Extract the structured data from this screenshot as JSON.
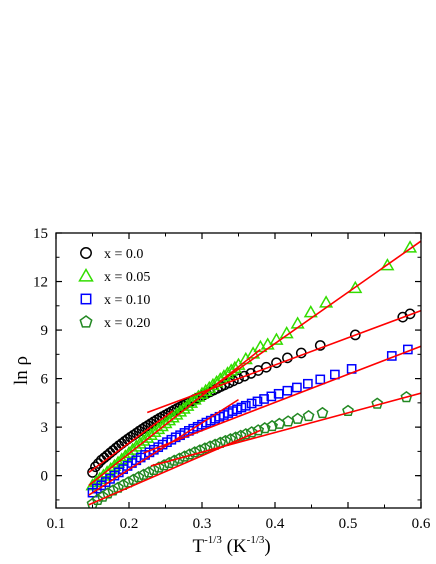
{
  "chart_data": {
    "type": "scatter",
    "xlabel": {
      "base": "T",
      "exp": "-1/3",
      "unit_pre": " (K",
      "unit_exp": "-1/3",
      "unit_post": ")"
    },
    "ylabel": "ln ρ",
    "xlim": [
      0.1,
      0.6
    ],
    "ylim": [
      -2,
      15
    ],
    "xticks": [
      0.1,
      0.2,
      0.3,
      0.4,
      0.5,
      0.6
    ],
    "xtick_labels": [
      "0.1",
      "0.2",
      "0.3",
      "0.4",
      "0.5",
      "0.6"
    ],
    "yticks": [
      0,
      3,
      6,
      9,
      12,
      15
    ],
    "ytick_labels": [
      "0",
      "3",
      "6",
      "9",
      "12",
      "15"
    ],
    "legend_position": "top-left",
    "fit_line_color": "#ff0000",
    "series": [
      {
        "name": "x = 0.0",
        "marker": "circle",
        "color": "#000000",
        "x": [
          0.15,
          0.154,
          0.158,
          0.162,
          0.166,
          0.17,
          0.174,
          0.178,
          0.182,
          0.186,
          0.19,
          0.194,
          0.198,
          0.202,
          0.206,
          0.21,
          0.214,
          0.218,
          0.222,
          0.226,
          0.23,
          0.234,
          0.238,
          0.242,
          0.246,
          0.25,
          0.254,
          0.258,
          0.262,
          0.266,
          0.27,
          0.274,
          0.278,
          0.282,
          0.286,
          0.29,
          0.294,
          0.298,
          0.302,
          0.306,
          0.311,
          0.316,
          0.321,
          0.326,
          0.331,
          0.337,
          0.343,
          0.35,
          0.358,
          0.367,
          0.377,
          0.388,
          0.402,
          0.417,
          0.436,
          0.462,
          0.51,
          0.575,
          0.585
        ],
        "y": [
          0.2,
          0.55,
          0.75,
          0.95,
          1.1,
          1.25,
          1.4,
          1.55,
          1.7,
          1.85,
          1.98,
          2.12,
          2.25,
          2.38,
          2.5,
          2.62,
          2.75,
          2.87,
          2.99,
          3.1,
          3.22,
          3.33,
          3.44,
          3.55,
          3.65,
          3.75,
          3.85,
          3.95,
          4.05,
          4.15,
          4.24,
          4.34,
          4.44,
          4.54,
          4.62,
          4.72,
          4.81,
          4.9,
          4.98,
          5.08,
          5.18,
          5.29,
          5.4,
          5.51,
          5.61,
          5.73,
          5.86,
          5.99,
          6.15,
          6.32,
          6.5,
          6.7,
          6.98,
          7.28,
          7.58,
          8.05,
          8.7,
          9.8,
          10.0
        ],
        "fits": [
          [
            0.145,
            0.2,
            0.26,
            4.0
          ],
          [
            0.225,
            3.9,
            0.6,
            10.2
          ]
        ]
      },
      {
        "name": "x = 0.05",
        "marker": "triangle",
        "color": "#33dd00",
        "x": [
          0.15,
          0.155,
          0.16,
          0.165,
          0.17,
          0.175,
          0.18,
          0.185,
          0.19,
          0.195,
          0.2,
          0.205,
          0.21,
          0.215,
          0.22,
          0.225,
          0.23,
          0.235,
          0.24,
          0.245,
          0.25,
          0.255,
          0.26,
          0.265,
          0.27,
          0.275,
          0.28,
          0.285,
          0.29,
          0.295,
          0.3,
          0.305,
          0.31,
          0.315,
          0.32,
          0.325,
          0.33,
          0.335,
          0.34,
          0.345,
          0.35,
          0.36,
          0.37,
          0.38,
          0.39,
          0.402,
          0.416,
          0.431,
          0.449,
          0.47,
          0.51,
          0.554,
          0.585
        ],
        "y": [
          -0.6,
          -0.4,
          -0.2,
          0.0,
          0.2,
          0.4,
          0.6,
          0.8,
          1.0,
          1.2,
          1.4,
          1.6,
          1.8,
          1.98,
          2.16,
          2.34,
          2.52,
          2.7,
          2.88,
          3.06,
          3.24,
          3.42,
          3.6,
          3.78,
          3.96,
          4.14,
          4.32,
          4.5,
          4.7,
          4.88,
          5.06,
          5.24,
          5.42,
          5.6,
          5.78,
          5.96,
          6.14,
          6.32,
          6.5,
          6.66,
          6.85,
          7.2,
          7.55,
          7.95,
          8.1,
          8.4,
          8.8,
          9.4,
          10.1,
          10.7,
          11.6,
          13.0,
          14.1
        ],
        "fits": [
          [
            0.145,
            -0.6,
            0.38,
            7.8
          ],
          [
            0.3,
            5.0,
            0.6,
            14.5
          ]
        ]
      },
      {
        "name": "x = 0.10",
        "marker": "square",
        "color": "#0000ff",
        "x": [
          0.15,
          0.156,
          0.162,
          0.168,
          0.174,
          0.18,
          0.186,
          0.192,
          0.198,
          0.204,
          0.21,
          0.216,
          0.222,
          0.228,
          0.234,
          0.24,
          0.246,
          0.252,
          0.258,
          0.264,
          0.27,
          0.276,
          0.282,
          0.288,
          0.294,
          0.3,
          0.306,
          0.312,
          0.318,
          0.324,
          0.33,
          0.336,
          0.342,
          0.348,
          0.354,
          0.36,
          0.368,
          0.376,
          0.385,
          0.395,
          0.405,
          0.417,
          0.43,
          0.445,
          0.462,
          0.482,
          0.505,
          0.56,
          0.582
        ],
        "y": [
          -1.05,
          -0.8,
          -0.6,
          -0.4,
          -0.2,
          0.0,
          0.2,
          0.4,
          0.6,
          0.78,
          0.95,
          1.12,
          1.28,
          1.44,
          1.6,
          1.76,
          1.92,
          2.07,
          2.22,
          2.37,
          2.5,
          2.64,
          2.77,
          2.9,
          3.02,
          3.15,
          3.28,
          3.4,
          3.52,
          3.64,
          3.75,
          3.87,
          3.99,
          4.1,
          4.21,
          4.32,
          4.46,
          4.59,
          4.74,
          4.9,
          5.06,
          5.25,
          5.45,
          5.68,
          5.95,
          6.25,
          6.6,
          7.4,
          7.8
        ],
        "fits": [
          [
            0.145,
            -1.2,
            0.35,
            4.7
          ],
          [
            0.22,
            1.4,
            0.6,
            8.0
          ]
        ]
      },
      {
        "name": "x = 0.20",
        "marker": "pentagon",
        "color": "#228822",
        "x": [
          0.15,
          0.157,
          0.164,
          0.171,
          0.178,
          0.185,
          0.192,
          0.199,
          0.206,
          0.213,
          0.22,
          0.227,
          0.234,
          0.241,
          0.248,
          0.255,
          0.262,
          0.269,
          0.276,
          0.283,
          0.29,
          0.297,
          0.304,
          0.311,
          0.318,
          0.325,
          0.332,
          0.339,
          0.346,
          0.353,
          0.36,
          0.368,
          0.377,
          0.386,
          0.396,
          0.406,
          0.418,
          0.431,
          0.446,
          0.465,
          0.5,
          0.54,
          0.58
        ],
        "y": [
          -1.75,
          -1.5,
          -1.3,
          -1.1,
          -0.92,
          -0.75,
          -0.58,
          -0.42,
          -0.26,
          -0.1,
          0.05,
          0.2,
          0.35,
          0.5,
          0.64,
          0.78,
          0.92,
          1.05,
          1.18,
          1.31,
          1.44,
          1.56,
          1.68,
          1.8,
          1.91,
          2.03,
          2.14,
          2.25,
          2.35,
          2.46,
          2.56,
          2.68,
          2.8,
          2.93,
          3.06,
          3.2,
          3.35,
          3.51,
          3.68,
          3.87,
          4.0,
          4.45,
          4.85
        ],
        "fits": [
          [
            0.145,
            -1.8,
            0.38,
            2.8
          ],
          [
            0.23,
            0.6,
            0.6,
            5.1
          ]
        ]
      }
    ]
  }
}
